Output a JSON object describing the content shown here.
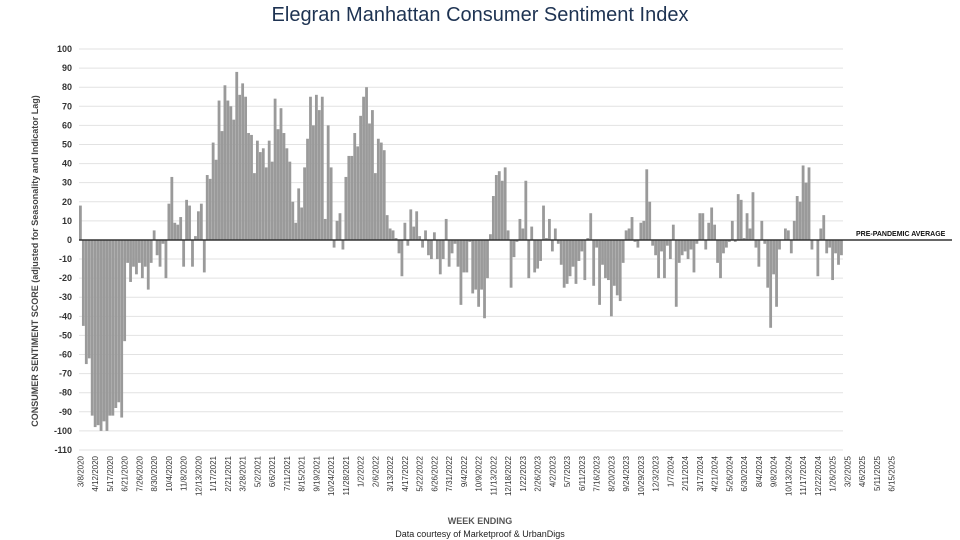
{
  "title_brand": "Elegran",
  "title_rest": "Manhattan Consumer Sentiment Index",
  "footer_credit": "Data courtesy of Marketproof & UrbanDigs",
  "colors": {
    "bar": "#9a9a9a",
    "grid": "#e2e2e2",
    "title": "#1e3352",
    "reference": "#333333"
  },
  "chart_data": {
    "type": "bar",
    "title": "Elegran Manhattan Consumer Sentiment Index",
    "xlabel": "WEEK ENDING",
    "ylabel": "CONSUMER SENTIMENT SCORE (adjusted for Seasonality and Indicator Lag)",
    "ylim": [
      -110,
      100
    ],
    "yticks": [
      100,
      90,
      80,
      70,
      60,
      50,
      40,
      30,
      20,
      10,
      0,
      -10,
      -20,
      -30,
      -40,
      -50,
      -60,
      -70,
      -80,
      -90,
      -100,
      -110
    ],
    "grid": true,
    "reference_line": {
      "value": 0,
      "label": "PRE-PANDEMIC AVERAGE"
    },
    "x_tick_labels": [
      "3/8/2020",
      "4/12/2020",
      "5/17/2020",
      "6/21/2020",
      "7/26/2020",
      "8/30/2020",
      "10/4/2020",
      "11/8/2020",
      "12/13/2020",
      "1/17/2021",
      "2/21/2021",
      "3/28/2021",
      "5/2/2021",
      "6/6/2021",
      "7/11/2021",
      "8/15/2021",
      "9/19/2021",
      "10/24/2021",
      "11/28/2021",
      "1/2/2022",
      "2/6/2022",
      "3/13/2022",
      "4/17/2022",
      "5/22/2022",
      "6/26/2022",
      "7/31/2022",
      "9/4/2022",
      "10/9/2022",
      "11/13/2022",
      "12/18/2022",
      "1/22/2023",
      "2/26/2023",
      "4/2/2023",
      "5/7/2023",
      "6/11/2023",
      "7/16/2023",
      "8/20/2023",
      "9/24/2023",
      "10/29/2023",
      "12/3/2023",
      "1/7/2024",
      "2/11/2024",
      "3/17/2024",
      "4/21/2024",
      "5/26/2024",
      "6/30/2024",
      "8/4/2024",
      "9/8/2024",
      "10/13/2024",
      "11/17/2024",
      "12/22/2024",
      "1/26/2025",
      "3/2/2025",
      "4/6/2025",
      "5/11/2025",
      "6/15/2025"
    ],
    "tick_every": 5,
    "series": [
      {
        "values": [
          18,
          -45,
          -65,
          -62,
          -92,
          -98,
          -97,
          -100,
          -95,
          -100,
          -92,
          -92,
          -88,
          -85,
          -93,
          -53,
          -12,
          -22,
          -14,
          -18,
          -12,
          -20,
          -14,
          -26,
          -12,
          5,
          -8,
          -14,
          -2,
          -20,
          19,
          33,
          9,
          8,
          12,
          -14,
          21,
          18,
          -14,
          2,
          15,
          19,
          -17,
          34,
          32,
          51,
          42,
          73,
          57,
          81,
          73,
          70,
          63,
          88,
          76,
          82,
          75,
          56,
          55,
          35,
          52,
          46,
          48,
          38,
          52,
          41,
          74,
          58,
          69,
          56,
          48,
          41,
          20,
          9,
          27,
          17,
          38,
          53,
          75,
          60,
          76,
          68,
          75,
          11,
          60,
          38,
          -4,
          10,
          14,
          -5,
          33,
          44,
          44,
          56,
          49,
          65,
          75,
          80,
          61,
          68,
          35,
          53,
          51,
          47,
          13,
          6,
          5,
          1,
          -7,
          -19,
          9,
          -3,
          16,
          7,
          15,
          2,
          -4,
          5,
          -8,
          -10,
          4,
          -10,
          -18,
          -10,
          11,
          -14,
          -7,
          -2,
          -14,
          -34,
          -17,
          -17,
          -1,
          -28,
          -26,
          -35,
          -26,
          -41,
          -20,
          3,
          23,
          34,
          36,
          31,
          38,
          5,
          -25,
          -9,
          -1,
          11,
          6,
          31,
          -20,
          7,
          -17,
          -15,
          -11,
          18,
          1,
          11,
          -6,
          6,
          -2,
          -13,
          -25,
          -23,
          -19,
          -14,
          -23,
          -11,
          -6,
          -21,
          1,
          14,
          -24,
          -4,
          -34,
          -13,
          -20,
          -21,
          -40,
          -24,
          -29,
          -32,
          -12,
          5,
          6,
          12,
          -1,
          -4,
          9,
          10,
          37,
          20,
          -3,
          -8,
          -20,
          -6,
          -20,
          -3,
          -10,
          8,
          -35,
          -12,
          -8,
          -6,
          -10,
          -5,
          -17,
          -2,
          14,
          14,
          -5,
          9,
          17,
          8,
          -12,
          -20,
          -7,
          -4,
          -1,
          10,
          -1,
          24,
          21,
          1,
          14,
          6,
          25,
          -4,
          -14,
          10,
          -2,
          -25,
          -46,
          -18,
          -35,
          -5,
          0,
          6,
          5,
          -7,
          10,
          23,
          20,
          39,
          30,
          38,
          -5,
          0,
          -19,
          6,
          13,
          -7,
          -4,
          -21,
          -7,
          -13,
          -8
        ]
      }
    ]
  }
}
